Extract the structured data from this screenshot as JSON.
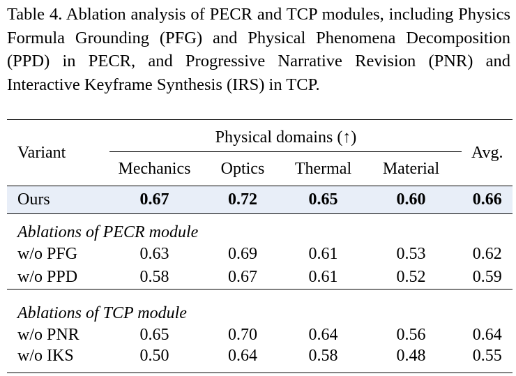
{
  "caption": "Table 4. Ablation analysis of PECR and TCP modules, including Physics Formula Grounding (PFG) and Physical Phenomena Decomposition (PPD) in PECR, and Progressive Narrative Revision (PNR) and Interactive Keyframe Synthesis (IRS) in TCP.",
  "table": {
    "variant_header": "Variant",
    "group_header": "Physical domains (↑)",
    "avg_header": "Avg.",
    "domains": [
      "Mechanics",
      "Optics",
      "Thermal",
      "Material"
    ],
    "ours": {
      "label": "Ours",
      "values": [
        "0.67",
        "0.72",
        "0.65",
        "0.60"
      ],
      "avg": "0.66"
    },
    "sections": [
      {
        "title": "Ablations of PECR module",
        "rows": [
          {
            "label": "w/o PFG",
            "values": [
              "0.63",
              "0.69",
              "0.61",
              "0.53"
            ],
            "avg": "0.62"
          },
          {
            "label": "w/o PPD",
            "values": [
              "0.58",
              "0.67",
              "0.61",
              "0.52"
            ],
            "avg": "0.59"
          }
        ]
      },
      {
        "title": "Ablations of TCP module",
        "rows": [
          {
            "label": "w/o PNR",
            "values": [
              "0.65",
              "0.70",
              "0.64",
              "0.56"
            ],
            "avg": "0.64"
          },
          {
            "label": "w/o IKS",
            "values": [
              "0.50",
              "0.64",
              "0.58",
              "0.48"
            ],
            "avg": "0.55"
          }
        ]
      }
    ]
  }
}
